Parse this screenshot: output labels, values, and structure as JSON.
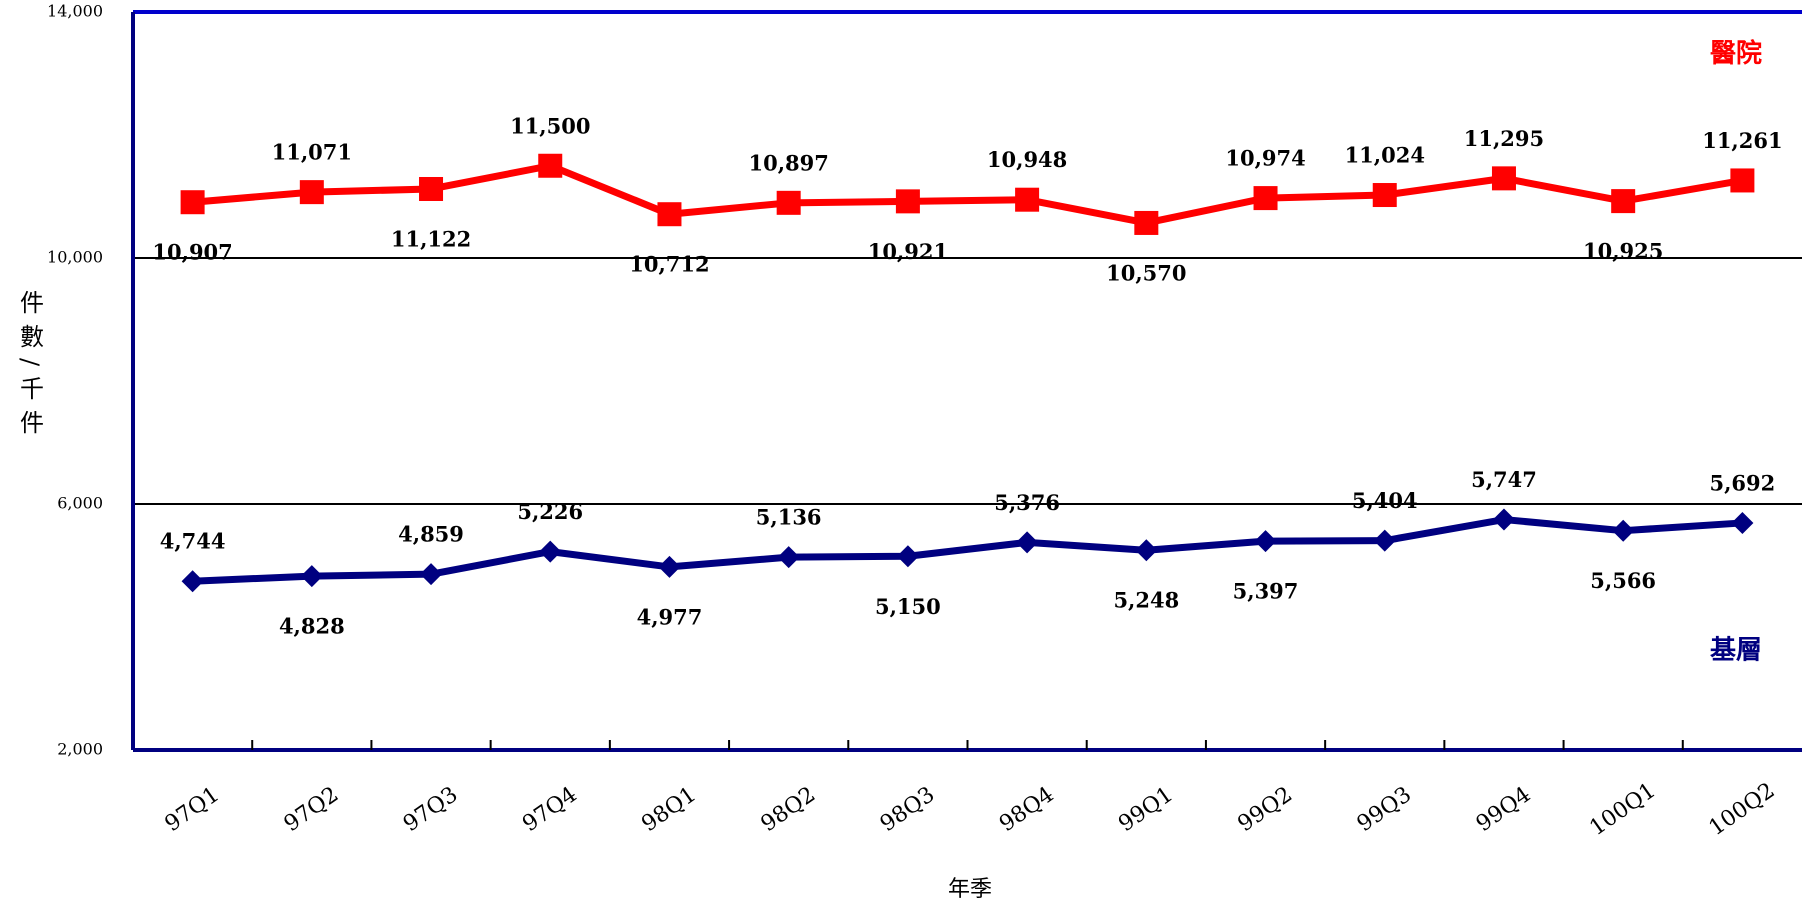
{
  "chart_data": {
    "type": "line",
    "x_label": "年季",
    "y_label": "件數/千件",
    "categories": [
      "97Q1",
      "97Q2",
      "97Q3",
      "97Q4",
      "98Q1",
      "98Q2",
      "98Q3",
      "98Q4",
      "99Q1",
      "99Q2",
      "99Q3",
      "99Q4",
      "100Q1",
      "100Q2"
    ],
    "series": [
      {
        "name": "醫院",
        "color": "#ff0000",
        "marker": "square",
        "values": [
          10907,
          11071,
          11122,
          11500,
          10712,
          10897,
          10921,
          10948,
          10570,
          10974,
          11024,
          11295,
          10925,
          11261
        ],
        "value_labels": [
          "10,907",
          "11,071",
          "11,122",
          "11,500",
          "10,712",
          "10,897",
          "10,921",
          "10,948",
          "10,570",
          "10,974",
          "11,024",
          "11,295",
          "10,925",
          "11,261"
        ]
      },
      {
        "name": "基層",
        "color": "#000080",
        "marker": "diamond",
        "values": [
          4744,
          4828,
          4859,
          5226,
          4977,
          5136,
          5150,
          5376,
          5248,
          5397,
          5404,
          5747,
          5566,
          5692
        ],
        "value_labels": [
          "4,744",
          "4,828",
          "4,859",
          "5,226",
          "4,977",
          "5,136",
          "5,150",
          "5,376",
          "5,248",
          "5,397",
          "5,404",
          "5,747",
          "5,566",
          "5,692"
        ]
      }
    ],
    "ylim": [
      2000,
      14000
    ],
    "yticks": [
      {
        "value": 2000,
        "label": "2,000"
      },
      {
        "value": 6000,
        "label": "6,000"
      },
      {
        "value": 10000,
        "label": "10,000"
      },
      {
        "value": 14000,
        "label": "14,000"
      }
    ],
    "grid": true
  }
}
